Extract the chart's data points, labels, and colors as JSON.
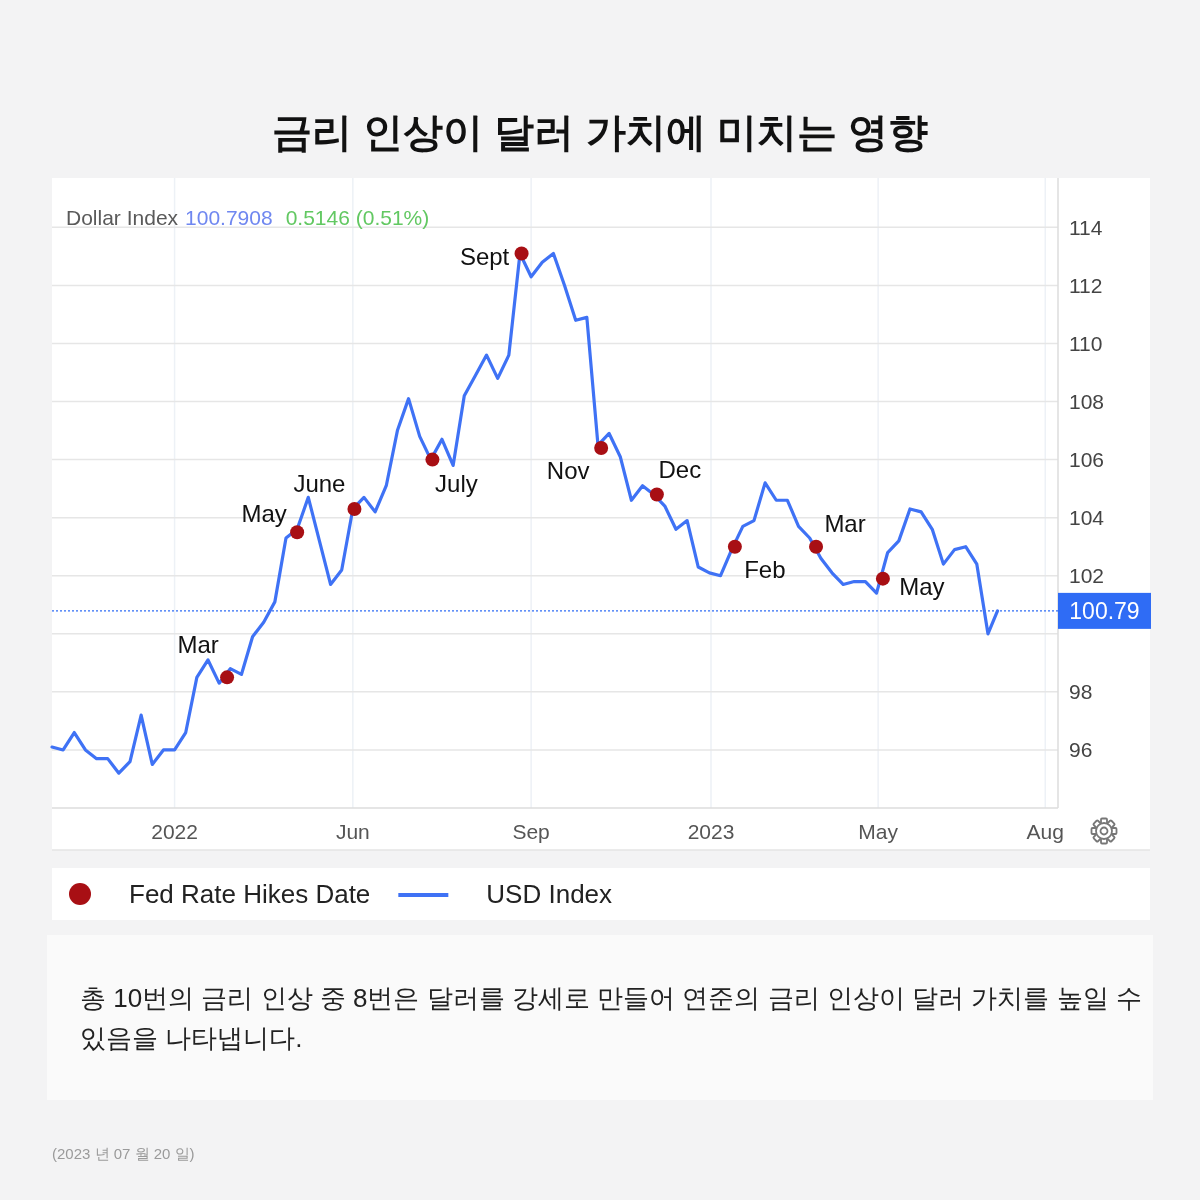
{
  "chart_data": {
    "type": "line",
    "title": "금리 인상이 달러 가치에 미치는 영향",
    "xlim": [
      "2021-12-03",
      "2023-08-27"
    ],
    "xticks": [
      {
        "value": "2022-02-18",
        "label": "2022"
      },
      {
        "value": "2022-06-10",
        "label": "Jun"
      },
      {
        "value": "2022-09-30",
        "label": "Sep"
      },
      {
        "value": "2023-01-21",
        "label": "2023"
      },
      {
        "value": "2023-05-06",
        "label": "May"
      },
      {
        "value": "2023-08-19",
        "label": "Aug"
      }
    ],
    "ylim": [
      94,
      115.7
    ],
    "yticks": [
      96,
      98,
      {
        "value": 100,
        "label": null
      },
      102,
      104,
      106,
      108,
      110,
      112,
      114
    ],
    "grid": true,
    "legend": "bottom",
    "series": [
      {
        "name": "Fed Rate Hikes Date",
        "type": "scatter",
        "marker": "circle",
        "color": "#a80f14",
        "x": [
          "2022-03-23",
          "2022-05-06",
          "2022-06-11",
          "2022-07-30",
          "2022-09-24",
          "2022-11-13",
          "2022-12-18",
          "2023-02-05",
          "2023-03-28",
          "2023-05-09"
        ],
        "values": [
          98.5,
          103.5,
          104.3,
          106.0,
          113.1,
          106.4,
          104.8,
          103.0,
          103.0,
          101.9
        ]
      },
      {
        "name": "USD Index",
        "color": "#3f72f5",
        "x": [
          "2021-12-03",
          "2021-12-10",
          "2021-12-17",
          "2021-12-24",
          "2021-12-31",
          "2022-01-07",
          "2022-01-14",
          "2022-01-21",
          "2022-01-28",
          "2022-02-04",
          "2022-02-11",
          "2022-02-18",
          "2022-02-25",
          "2022-03-04",
          "2022-03-11",
          "2022-03-18",
          "2022-03-25",
          "2022-04-01",
          "2022-04-08",
          "2022-04-15",
          "2022-04-22",
          "2022-04-29",
          "2022-05-06",
          "2022-05-13",
          "2022-05-20",
          "2022-05-27",
          "2022-06-03",
          "2022-06-10",
          "2022-06-17",
          "2022-06-24",
          "2022-07-01",
          "2022-07-08",
          "2022-07-15",
          "2022-07-22",
          "2022-07-29",
          "2022-08-05",
          "2022-08-12",
          "2022-08-19",
          "2022-08-26",
          "2022-09-02",
          "2022-09-09",
          "2022-09-16",
          "2022-09-23",
          "2022-09-30",
          "2022-10-07",
          "2022-10-14",
          "2022-10-21",
          "2022-10-28",
          "2022-11-04",
          "2022-11-11",
          "2022-11-18",
          "2022-11-25",
          "2022-12-02",
          "2022-12-09",
          "2022-12-16",
          "2022-12-23",
          "2022-12-30",
          "2023-01-06",
          "2023-01-13",
          "2023-01-20",
          "2023-01-27",
          "2023-02-03",
          "2023-02-10",
          "2023-02-17",
          "2023-02-24",
          "2023-03-03",
          "2023-03-10",
          "2023-03-17",
          "2023-03-24",
          "2023-03-31",
          "2023-04-07",
          "2023-04-14",
          "2023-04-21",
          "2023-04-28",
          "2023-05-05",
          "2023-05-12",
          "2023-05-19",
          "2023-05-26",
          "2023-06-02",
          "2023-06-09",
          "2023-06-16",
          "2023-06-23",
          "2023-06-30",
          "2023-07-07",
          "2023-07-14",
          "2023-07-20"
        ],
        "values": [
          96.1,
          96.0,
          96.6,
          96.0,
          95.7,
          95.7,
          95.2,
          95.6,
          97.2,
          95.5,
          96.0,
          96.0,
          96.6,
          98.5,
          99.1,
          98.3,
          98.8,
          98.6,
          99.9,
          100.4,
          101.1,
          103.3,
          103.6,
          104.7,
          103.2,
          101.7,
          102.2,
          104.3,
          104.7,
          104.2,
          105.1,
          107.0,
          108.1,
          106.8,
          106.0,
          106.7,
          105.8,
          108.2,
          108.9,
          109.6,
          108.8,
          109.6,
          113.1,
          112.3,
          112.8,
          113.1,
          112.0,
          110.8,
          110.9,
          106.5,
          106.9,
          106.1,
          104.6,
          105.1,
          104.8,
          104.4,
          103.6,
          103.9,
          102.3,
          102.1,
          102.0,
          102.9,
          103.7,
          103.9,
          105.2,
          104.6,
          104.6,
          103.7,
          103.3,
          102.6,
          102.1,
          101.7,
          101.8,
          101.8,
          101.4,
          102.8,
          103.2,
          104.3,
          104.2,
          103.6,
          102.4,
          102.9,
          103.0,
          102.4,
          100.0,
          100.79
        ]
      }
    ],
    "ref_lines": [
      {
        "axis": "y",
        "value": 100.79,
        "label": "100.79",
        "color": "#2f6cf5",
        "line_style": "dotted"
      }
    ],
    "annotations": [
      "Dollar Index",
      "100.7908",
      "0.5146 (0.51%)",
      {
        "text": "Mar",
        "x": "2022-03-23",
        "y": 98.5
      },
      {
        "text": "May",
        "x": "2022-05-06",
        "y": 103.5
      },
      {
        "text": "June",
        "x": "2022-06-11",
        "y": 104.3
      },
      {
        "text": "July",
        "x": "2022-07-30",
        "y": 106.0
      },
      {
        "text": "Sept",
        "x": "2022-09-24",
        "y": 113.1
      },
      {
        "text": "Nov",
        "x": "2022-11-13",
        "y": 106.4
      },
      {
        "text": "Dec",
        "x": "2022-12-18",
        "y": 104.8
      },
      {
        "text": "Feb",
        "x": "2023-02-05",
        "y": 103.0
      },
      {
        "text": "Mar",
        "x": "2023-03-28",
        "y": 103.0
      },
      {
        "text": "May",
        "x": "2023-05-09",
        "y": 101.9
      },
      "총 10번의 금리 인상 중 8번은 달러를 강세로 만들어 연준의 금리 인상이 달러 가치를 높일 수 있음을 나타냅니다.",
      "(2023 년 07 월 20 일)"
    ]
  }
}
